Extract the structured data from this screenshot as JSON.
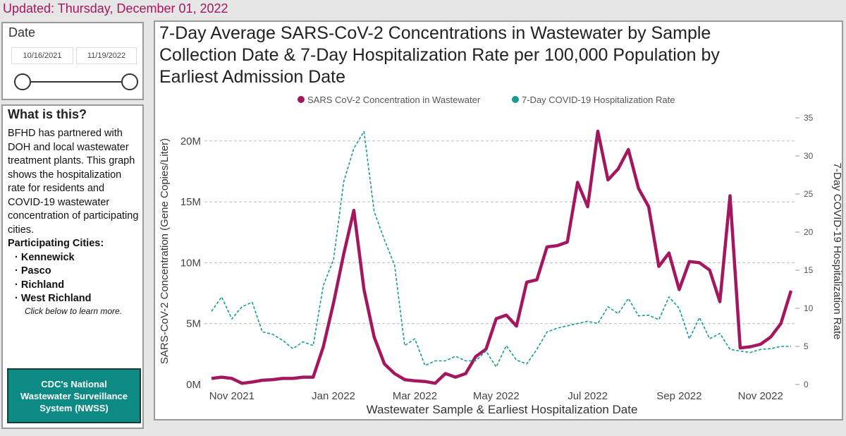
{
  "header": {
    "updated": "Updated: Thursday, December 01, 2022"
  },
  "date_filter": {
    "label": "Date",
    "start": "10/16/2021",
    "end": "11/19/2022"
  },
  "info": {
    "title": "What is this?",
    "text": "BFHD has partnered with DOH and local wastewater treatment plants. This graph shows the hospitalization rate for residents and COVID-19 wastewater concentration of participating cities.",
    "cities_title": "Participating Cities:",
    "cities": [
      "Kennewick",
      "Pasco",
      "Richland",
      "West Richland"
    ],
    "note": "Click below to learn more.",
    "button": "CDC's National Wastewater Surveillance System (NWSS)"
  },
  "chart_data": {
    "type": "line",
    "title": "7-Day Average SARS-CoV-2 Concentrations in Wastewater by Sample Collection Date & 7-Day Hospitalization Rate per 100,000 Population by Earliest Admission Date",
    "x_label": "Wastewater Sample & Earliest Hospitalization Date",
    "y_label": "SARS-CoV-2 Concentration (Gene Copies/Liter)",
    "y2_label": "7-Day COVID-19 Hospitalization Rate",
    "categories": [
      null,
      null,
      "Nov 2021",
      null,
      null,
      null,
      null,
      null,
      null,
      null,
      null,
      null,
      "Jan 2022",
      null,
      null,
      null,
      null,
      null,
      null,
      null,
      "Mar 2022",
      null,
      null,
      null,
      null,
      null,
      null,
      null,
      "May 2022",
      null,
      null,
      null,
      null,
      null,
      null,
      null,
      null,
      "Jul 2022",
      null,
      null,
      null,
      null,
      null,
      null,
      null,
      null,
      "Sep 2022",
      null,
      null,
      null,
      null,
      null,
      null,
      null,
      "Nov 2022",
      null,
      null,
      null
    ],
    "series": [
      {
        "name": "SARS CoV-2 Concentration in Wastewater",
        "color": "#a3175f",
        "axis": "y",
        "values": [
          500000,
          600000,
          500000,
          100000,
          200000,
          350000,
          400000,
          500000,
          500000,
          600000,
          600000,
          3100000,
          6700000,
          10700000,
          14300000,
          7800000,
          3900000,
          1700000,
          900000,
          400000,
          300000,
          250000,
          100000,
          900000,
          600000,
          900000,
          2300000,
          2900000,
          5400000,
          5700000,
          4800000,
          8400000,
          8600000,
          11300000,
          11400000,
          11700000,
          16600000,
          14600000,
          20800000,
          16800000,
          17700000,
          19300000,
          16100000,
          14600000,
          9700000,
          10800000,
          7800000,
          10100000,
          10000000,
          9400000,
          6800000,
          15500000,
          3000000,
          3100000,
          3300000,
          3900000,
          5000000,
          7700000
        ]
      },
      {
        "name": "7-Day COVID-19 Hospitalization Rate",
        "color": "#1a9a94",
        "axis": "y2",
        "values": [
          9.6,
          11.5,
          8.6,
          10.2,
          10.8,
          6.9,
          6.6,
          5.8,
          4.7,
          5.6,
          5.1,
          13.0,
          16.4,
          26.6,
          31.0,
          33.2,
          22.7,
          19.0,
          15.7,
          5.1,
          6.0,
          2.5,
          3.1,
          3.1,
          3.7,
          3.1,
          3.1,
          4.4,
          2.3,
          5.1,
          3.2,
          2.7,
          4.6,
          6.9,
          7.4,
          7.7,
          8.0,
          8.3,
          8.0,
          10.2,
          9.3,
          11.3,
          9.0,
          9.1,
          8.5,
          11.5,
          10.0,
          6.0,
          8.8,
          6.0,
          6.7,
          4.6,
          4.4,
          4.2,
          4.6,
          4.7,
          5.0,
          5.0
        ]
      }
    ],
    "ylim": [
      0,
      21900000
    ],
    "yticks": [
      {
        "value": 0,
        "label": "0M"
      },
      {
        "value": 5000000,
        "label": "5M"
      },
      {
        "value": 10000000,
        "label": "10M"
      },
      {
        "value": 15000000,
        "label": "15M"
      },
      {
        "value": 20000000,
        "label": "20M"
      }
    ],
    "y2lim": [
      0,
      35
    ],
    "y2ticks": [
      0,
      5,
      10,
      15,
      20,
      25,
      30,
      35
    ],
    "grid": true
  }
}
